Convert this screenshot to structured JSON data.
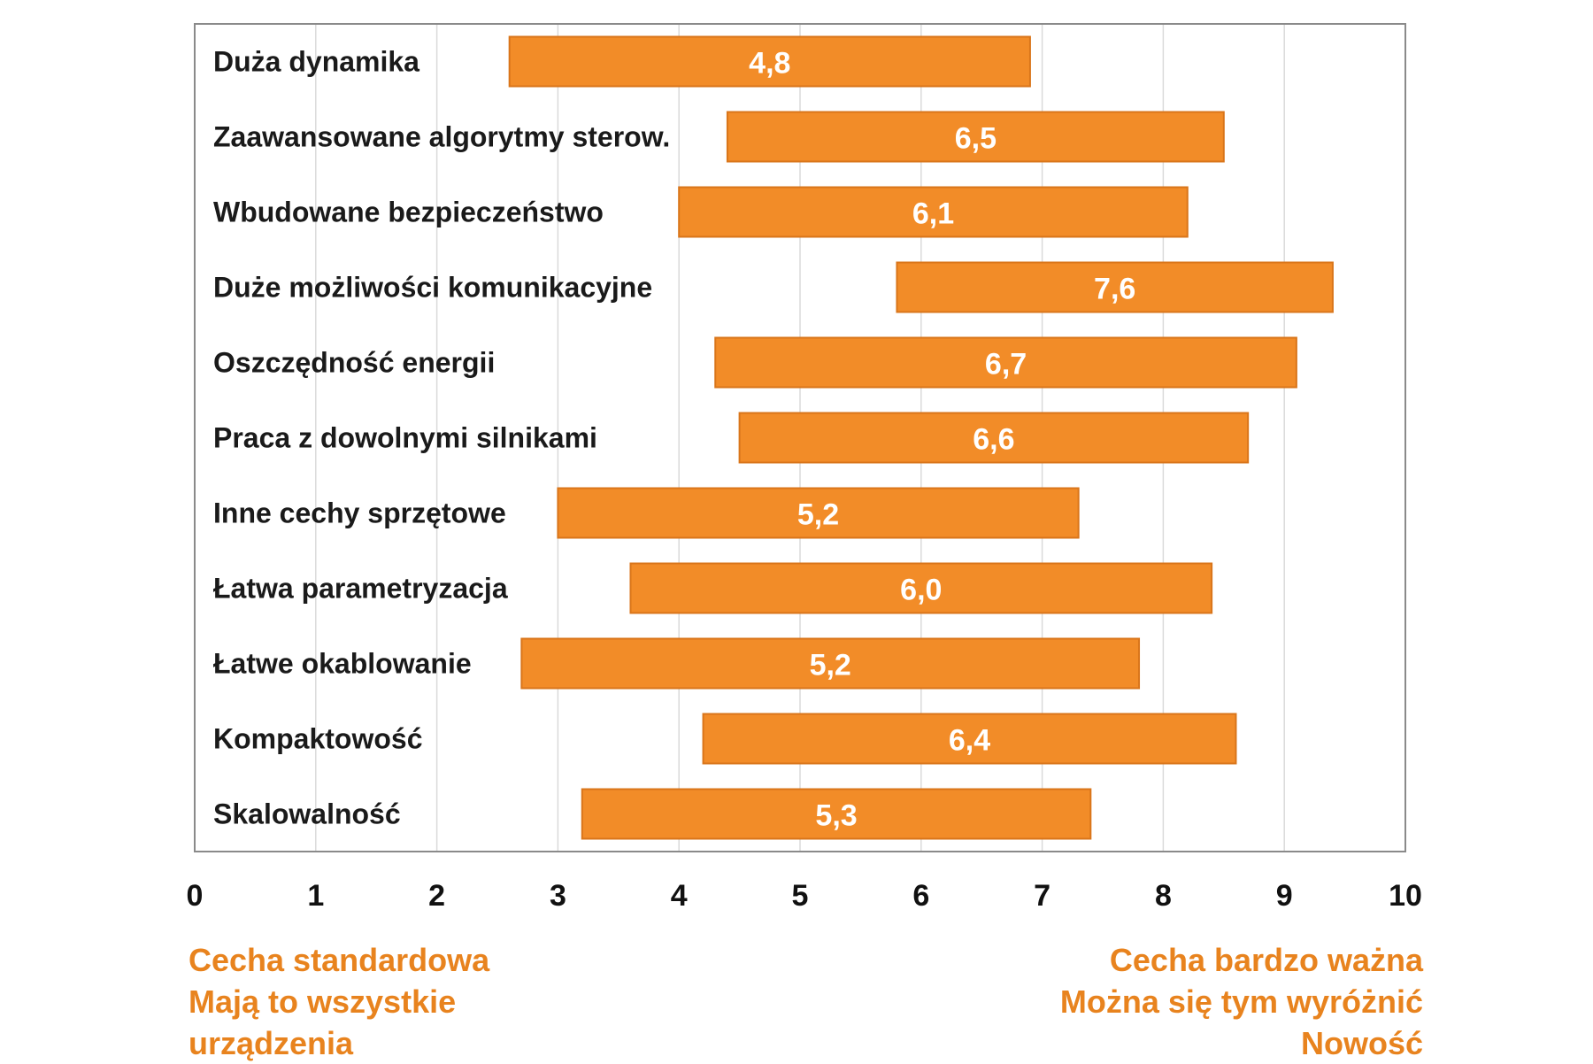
{
  "chart_data": {
    "type": "bar",
    "orientation": "horizontal-floating",
    "categories": [
      "Duża dynamika",
      "Zaawansowane algorytmy sterow.",
      "Wbudowane bezpieczeństwo",
      "Duże możliwości komunikacyjne",
      "Oszczędność energii",
      "Praca z dowolnymi silnikami",
      "Inne cechy sprzętowe",
      "Łatwa parametryzacja",
      "Łatwe okablowanie",
      "Kompaktowość",
      "Skalowalność"
    ],
    "series": [
      {
        "values": [
          4.8,
          6.5,
          6.1,
          7.6,
          6.7,
          6.6,
          5.2,
          6.0,
          5.2,
          6.4,
          5.3
        ],
        "value_labels": [
          "4,8",
          "6,5",
          "6,1",
          "7,6",
          "6,7",
          "6,6",
          "5,2",
          "6,0",
          "5,2",
          "6,4",
          "5,3"
        ],
        "range_low": [
          2.6,
          4.4,
          4.0,
          5.8,
          4.3,
          4.5,
          3.0,
          3.6,
          2.7,
          4.2,
          3.2
        ],
        "range_high": [
          6.9,
          8.5,
          8.2,
          9.4,
          9.1,
          8.7,
          7.3,
          8.4,
          7.8,
          8.6,
          7.4
        ],
        "color": "#F28C28"
      }
    ],
    "x_ticks": [
      "0",
      "1",
      "2",
      "3",
      "4",
      "5",
      "6",
      "7",
      "8",
      "9",
      "10"
    ],
    "xlim": [
      0,
      10
    ],
    "grid": true,
    "grid_axis": "x"
  },
  "notes": {
    "left": [
      "Cecha standardowa",
      "Mają to wszystkie",
      "urządzenia"
    ],
    "right": [
      "Cecha bardzo ważna",
      "Można się tym wyróżnić",
      "Nowość"
    ]
  },
  "colors": {
    "bar_fill": "#F28C28",
    "bar_stroke": "#D9751A",
    "note_text": "#E8831E",
    "grid": "#DADADA",
    "frame": "#8A8A8A",
    "label_text": "#1A1A1A",
    "value_text": "#FFFFFF"
  }
}
